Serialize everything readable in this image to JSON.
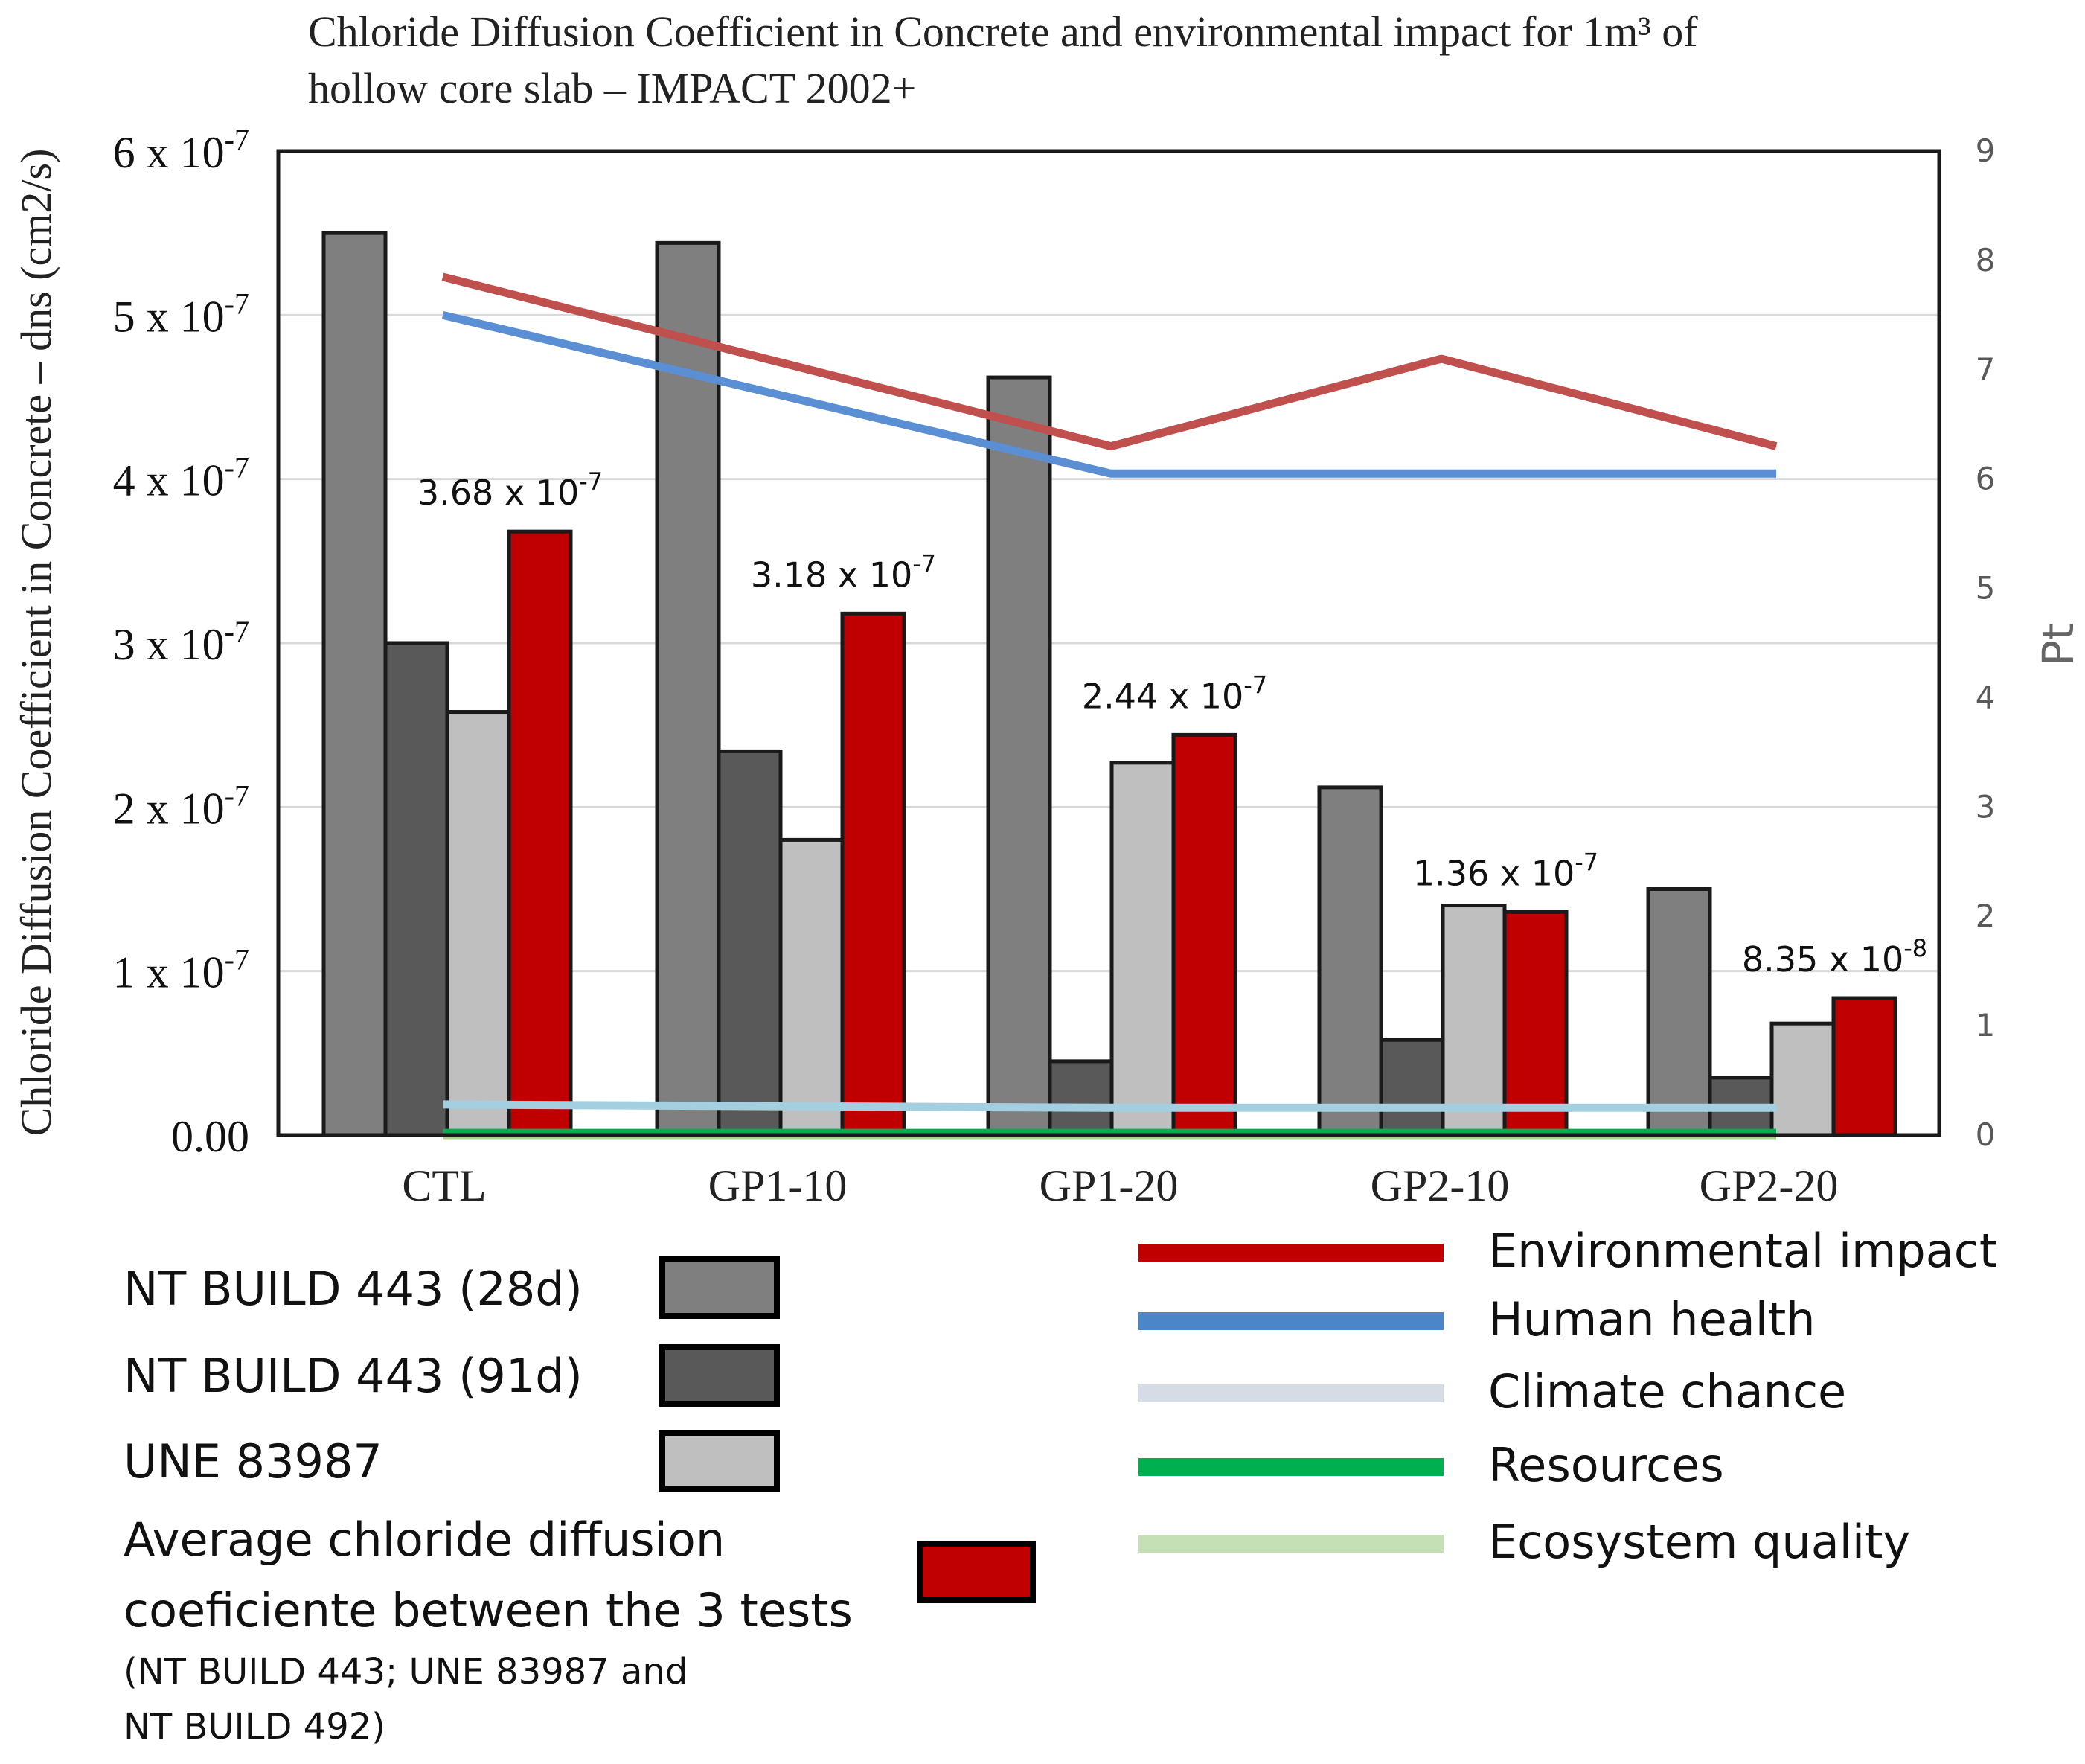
{
  "chart_data": {
    "type": "bar",
    "title_line1": "Chloride Diffusion Coefficient in Concrete and environmental impact for 1m³ of",
    "title_line2": "hollow core slab – IMPACT 2002+",
    "ylabel": "Chloride Diffusion Coefficient in Concrete – dns (cm2/s)",
    "y2label": "Pt",
    "ylim": [
      0,
      6e-07
    ],
    "y2lim": [
      0,
      9
    ],
    "y_ticks": [
      {
        "value": 0,
        "base": "0.00",
        "exp": ""
      },
      {
        "value": 1e-07,
        "base": "1 x 10",
        "exp": "-7"
      },
      {
        "value": 2e-07,
        "base": "2 x 10",
        "exp": "-7"
      },
      {
        "value": 3e-07,
        "base": "3 x 10",
        "exp": "-7"
      },
      {
        "value": 4e-07,
        "base": "4 x 10",
        "exp": "-7"
      },
      {
        "value": 5e-07,
        "base": "5 x 10",
        "exp": "-7"
      },
      {
        "value": 6e-07,
        "base": "6 x 10",
        "exp": "-7"
      }
    ],
    "y2_ticks": [
      "0",
      "1",
      "2",
      "3",
      "4",
      "5",
      "6",
      "7",
      "8",
      "9"
    ],
    "categories": [
      "CTL",
      "GP1-10",
      "GP1-20",
      "GP2-10",
      "GP2-20"
    ],
    "bar_series": [
      {
        "name": "NT BUILD 443 (28d)",
        "color": "#7f7f7f",
        "values": [
          5.5e-07,
          5.44e-07,
          4.62e-07,
          2.12e-07,
          1.5e-07
        ]
      },
      {
        "name": "NT BUILD 443 (91d)",
        "color": "#595959",
        "values": [
          3e-07,
          2.34e-07,
          4.5e-08,
          5.8e-08,
          3.5e-08
        ]
      },
      {
        "name": "UNE 83987",
        "color": "#bfbfbf",
        "values": [
          2.58e-07,
          1.8e-07,
          2.27e-07,
          1.4e-07,
          6.8e-08
        ]
      },
      {
        "name": "Average chloride diffusion coeficiente between the 3 tests",
        "color": "#c00000",
        "values": [
          3.68e-07,
          3.18e-07,
          2.44e-07,
          1.36e-07,
          8.35e-08
        ]
      }
    ],
    "avg_labels": [
      {
        "base": "3.68 x 10",
        "exp": "-7"
      },
      {
        "base": "3.18 x 10",
        "exp": "-7"
      },
      {
        "base": "2.44 x 10",
        "exp": "-7"
      },
      {
        "base": "1.36 x 10",
        "exp": "-7"
      },
      {
        "base": "8.35 x 10",
        "exp": "-8"
      }
    ],
    "line_series": [
      {
        "name": "Environmental impact",
        "color": "#c0504d",
        "legend_color": "#c00000",
        "values": [
          7.85,
          null,
          6.3,
          7.1,
          6.3
        ]
      },
      {
        "name": "Human health",
        "color": "#5b8fd4",
        "legend_color": "#4a86c8",
        "values": [
          7.5,
          null,
          6.05,
          6.05,
          6.05
        ]
      },
      {
        "name": "Climate chance",
        "color": "#a4cfe0",
        "legend_color": "#d6dce5",
        "values": [
          0.28,
          null,
          0.25,
          0.25,
          0.25
        ]
      },
      {
        "name": "Resources",
        "color": "#00b050",
        "legend_color": "#00b050",
        "values": [
          0.02,
          null,
          0.02,
          0.02,
          0.02
        ]
      },
      {
        "name": "Ecosystem quality",
        "color": "#a9d18e",
        "legend_color": "#c5e0b4",
        "values": [
          0.0,
          null,
          0.0,
          0.0,
          0.0
        ]
      }
    ],
    "legend_avg_note_line1": "(NT BUILD 443; UNE 83987 and",
    "legend_avg_note_line2": "NT BUILD 492)"
  }
}
